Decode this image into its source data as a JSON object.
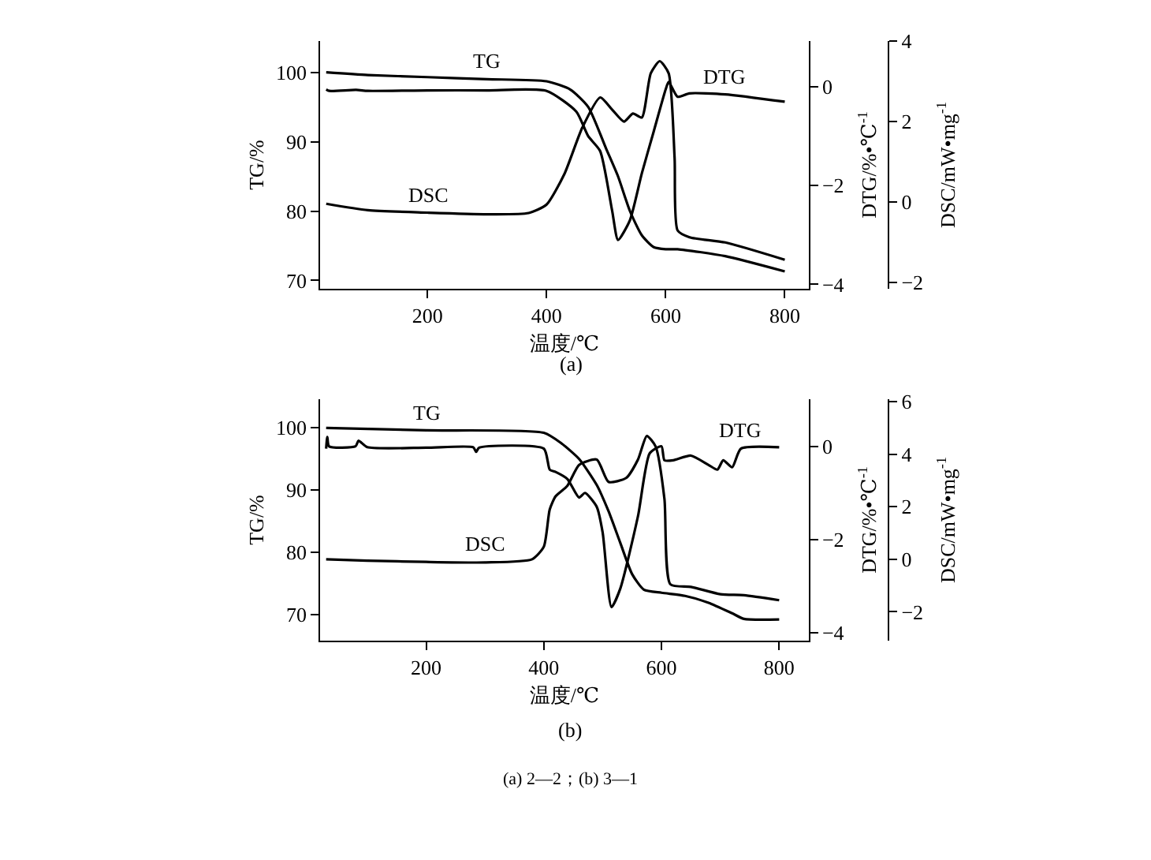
{
  "chart_data": [
    {
      "type": "line",
      "title": "(a)",
      "xlabel": "温度/℃",
      "ylabel": "TG/%",
      "y2label": "DTG/%•℃$^{-1}$",
      "y3label": "DSC/mW•mg$^{-1}$",
      "xlim": [
        20,
        840
      ],
      "xticks": [
        200,
        400,
        600,
        800
      ],
      "ylim": [
        68.8,
        104.5
      ],
      "yticks": [
        70,
        80,
        90,
        100
      ],
      "y2lim": [
        -4.09,
        0.93
      ],
      "y2ticks": [
        -4,
        -2,
        0
      ],
      "y3lim": [
        -2.15,
        4.0
      ],
      "y3ticks": [
        -2,
        0,
        2,
        4
      ],
      "grid": false,
      "legend": false,
      "series": [
        {
          "name": "TG",
          "color": "#000000",
          "x": [
            30,
            100,
            200,
            300,
            400,
            440,
            470,
            500,
            520,
            540,
            560,
            580,
            600,
            620,
            700,
            800
          ],
          "values": [
            100,
            99.6,
            99.3,
            99.0,
            98.7,
            97.5,
            95,
            89,
            85,
            80,
            76.5,
            74.8,
            74.5,
            74.5,
            73.5,
            71.3
          ]
        },
        {
          "name": "DTG",
          "color": "#000000",
          "axis": "y2",
          "x": [
            30,
            35,
            80,
            100,
            200,
            300,
            400,
            450,
            470,
            490,
            510,
            520,
            540,
            560,
            580,
            600,
            605,
            620,
            640,
            700,
            800
          ],
          "values": [
            -0.05,
            -0.08,
            -0.06,
            -0.08,
            -0.07,
            -0.07,
            -0.08,
            -0.5,
            -1.0,
            -1.3,
            -2.5,
            -3.1,
            -2.7,
            -1.75,
            -0.9,
            -0.05,
            0.1,
            -0.2,
            -0.13,
            -0.15,
            -0.3
          ]
        },
        {
          "name": "DSC",
          "color": "#000000",
          "axis": "y3",
          "x": [
            30,
            100,
            200,
            300,
            370,
            400,
            430,
            460,
            490,
            510,
            530,
            545,
            560,
            575,
            590,
            605,
            615,
            620,
            640,
            700,
            800
          ],
          "values": [
            -0.04,
            -0.2,
            -0.26,
            -0.3,
            -0.27,
            -0.06,
            0.7,
            1.85,
            2.6,
            2.3,
            2.0,
            2.2,
            2.1,
            3.2,
            3.5,
            3.2,
            1.1,
            -0.7,
            -0.87,
            -1.0,
            -1.43
          ]
        }
      ]
    },
    {
      "type": "line",
      "title": "(b)",
      "xlabel": "温度/℃",
      "ylabel": "TG/%",
      "y2label": "DTG/%•℃$^{-1}$",
      "y3label": "DSC/mW•mg$^{-1}$",
      "annotations": [
        "(a) 2—2；(b) 3—1"
      ],
      "xlim": [
        20,
        850
      ],
      "xticks": [
        200,
        400,
        600,
        800
      ],
      "ylim": [
        65.8,
        104.6
      ],
      "yticks": [
        70,
        80,
        90,
        100
      ],
      "y2lim": [
        -4.17,
        1.01
      ],
      "y2ticks": [
        -4,
        -2,
        0
      ],
      "y3lim": [
        -3.1,
        6.1
      ],
      "y3ticks": [
        -2,
        0,
        2,
        4,
        6
      ],
      "grid": false,
      "legend": false,
      "series": [
        {
          "name": "TG",
          "color": "#000000",
          "x": [
            30,
            200,
            400,
            430,
            460,
            490,
            510,
            530,
            550,
            570,
            600,
            640,
            680,
            720,
            740,
            800
          ],
          "values": [
            100,
            99.6,
            99.2,
            97.5,
            95,
            90.8,
            86.6,
            81.5,
            76.5,
            74,
            73.5,
            73,
            71.9,
            70.2,
            69.3,
            69.2
          ]
        },
        {
          "name": "DTG",
          "color": "#000000",
          "axis": "y2",
          "x": [
            30,
            32,
            35,
            80,
            85,
            100,
            200,
            280,
            285,
            290,
            400,
            410,
            420,
            440,
            460,
            470,
            490,
            500,
            515,
            530,
            560,
            580,
            600,
            605,
            620,
            650,
            680,
            695,
            705,
            720,
            735,
            800
          ],
          "values": [
            -0.05,
            0.2,
            0,
            0,
            0.12,
            -0.02,
            -0.03,
            -0.02,
            -0.12,
            -0.03,
            -0.05,
            -0.5,
            -0.55,
            -0.7,
            -1.1,
            -1.0,
            -1.3,
            -1.85,
            -3.45,
            -3.05,
            -1.5,
            -0.15,
            0,
            -0.3,
            -0.3,
            -0.2,
            -0.4,
            -0.5,
            -0.3,
            -0.45,
            -0.05,
            -0.02
          ]
        },
        {
          "name": "DSC",
          "color": "#000000",
          "axis": "y3",
          "x": [
            30,
            100,
            200,
            300,
            380,
            400,
            410,
            420,
            440,
            460,
            490,
            510,
            540,
            560,
            575,
            590,
            605,
            615,
            650,
            700,
            740,
            800
          ],
          "values": [
            0,
            -0.05,
            -0.1,
            -0.12,
            0,
            0.48,
            1.9,
            2.4,
            2.8,
            3.6,
            3.8,
            2.95,
            3.1,
            3.8,
            4.7,
            4.3,
            2.3,
            -0.95,
            -1.05,
            -1.33,
            -1.37,
            -1.56
          ]
        }
      ]
    }
  ]
}
